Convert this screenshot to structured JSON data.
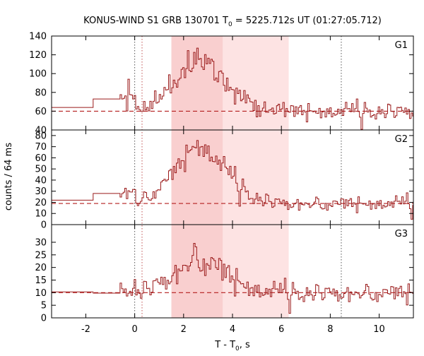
{
  "chart_data": {
    "type": "line",
    "title": "KONUS-WIND S1 GRB 130701 T",
    "title_sub": "0",
    "title_rest": " = 5225.712s UT (01:27:05.712)",
    "xlabel": "T - T",
    "xlabel_sub": "0",
    "xlabel_rest": ", s",
    "ylabel": "counts / 64 ms",
    "xlim": [
      -3.4,
      11.4
    ],
    "x_ticks": [
      -2,
      0,
      2,
      4,
      6,
      8,
      10
    ],
    "colors": {
      "line": "#9b1b1b",
      "background_line": "#b41e1e",
      "band_outer": "#fde3e3",
      "band_inner": "#f9cfcf",
      "marker": "#555555"
    },
    "shaded_intervals": [
      {
        "name": "outer",
        "x_range": [
          1.5,
          6.3
        ]
      },
      {
        "name": "inner",
        "x_range": [
          1.5,
          3.6
        ]
      }
    ],
    "vertical_markers": [
      0.0,
      0.3,
      8.45
    ],
    "panels": [
      {
        "name": "G1",
        "ylim": [
          40,
          140
        ],
        "y_ticks": [
          40,
          60,
          80,
          100,
          120,
          140
        ],
        "background_level": 60,
        "pre_burst": [
          [
            -3.4,
            64
          ],
          [
            -1.7,
            64
          ],
          [
            -1.7,
            73
          ],
          [
            -0.6,
            73
          ]
        ]
      },
      {
        "name": "G2",
        "ylim": [
          0,
          85
        ],
        "y_ticks": [
          0,
          10,
          20,
          30,
          40,
          50,
          60,
          70,
          80
        ],
        "background_level": 19,
        "pre_burst": [
          [
            -3.4,
            22
          ],
          [
            -1.7,
            22
          ],
          [
            -1.7,
            28
          ],
          [
            -0.6,
            28
          ]
        ]
      },
      {
        "name": "G3",
        "ylim": [
          0,
          37
        ],
        "y_ticks": [
          0,
          5,
          10,
          15,
          20,
          25,
          30
        ],
        "background_level": 10,
        "pre_burst": [
          [
            -3.4,
            10.3
          ],
          [
            -1.7,
            10.3
          ],
          [
            -1.7,
            9.8
          ],
          [
            -0.6,
            9.8
          ]
        ]
      }
    ],
    "grid": false,
    "legend": "none"
  }
}
